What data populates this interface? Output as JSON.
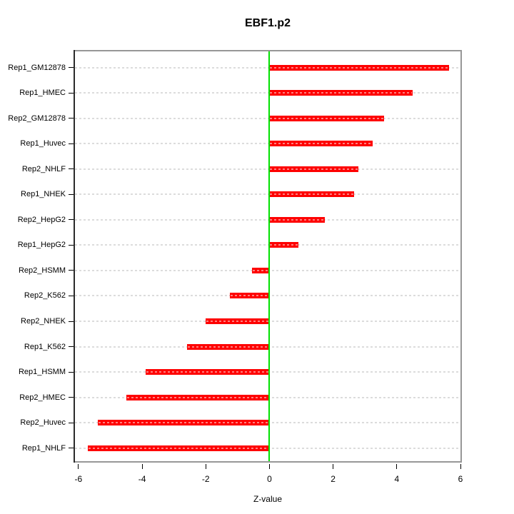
{
  "title": "EBF1.p2",
  "chart_data": {
    "type": "bar",
    "orientation": "horizontal",
    "title": "EBF1.p2",
    "xlabel": "Z-value",
    "ylabel": "",
    "categories": [
      "Rep1_GM12878",
      "Rep1_HMEC",
      "Rep2_GM12878",
      "Rep1_Huvec",
      "Rep2_NHLF",
      "Rep1_NHEK",
      "Rep2_HepG2",
      "Rep1_HepG2",
      "Rep2_HSMM",
      "Rep2_K562",
      "Rep2_NHEK",
      "Rep1_K562",
      "Rep1_HSMM",
      "Rep2_HMEC",
      "Rep2_Huvec",
      "Rep1_NHLF"
    ],
    "values": [
      5.65,
      4.5,
      3.6,
      3.25,
      2.8,
      2.65,
      1.75,
      0.9,
      -0.55,
      -1.25,
      -2.0,
      -2.6,
      -3.9,
      -4.5,
      -5.4,
      -5.7
    ],
    "xlim": [
      -6.11,
      6.0
    ],
    "xticks": [
      -6,
      -4,
      -2,
      0,
      2,
      4,
      6
    ],
    "xtick_labels": [
      "-6",
      "-4",
      "-2",
      "0",
      "2",
      "4",
      "6"
    ],
    "grid": "horizontal-dashed-per-category",
    "legend": "none",
    "zero_reference_line": 0,
    "colors": {
      "bar": "#fe0000",
      "zero_line": "#00e100",
      "grid_line": "#dcdcdc",
      "box_border": "#979797",
      "axis_line": "#2a2a2a",
      "text": "#000000",
      "background": "#ffffff"
    }
  }
}
